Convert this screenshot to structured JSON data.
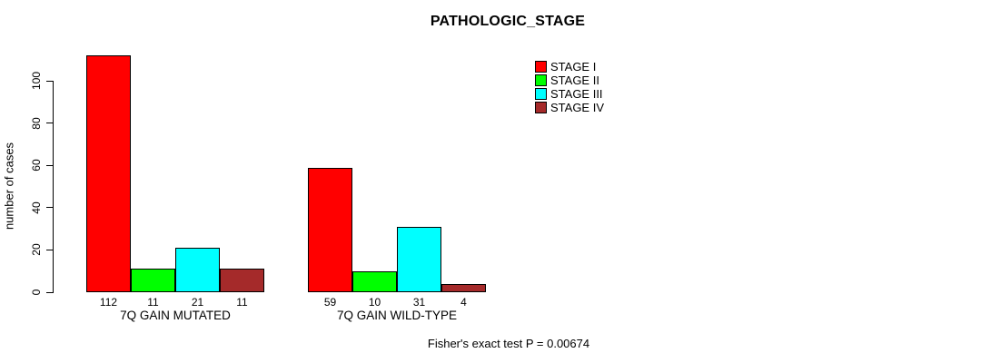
{
  "chart_data": {
    "type": "bar",
    "title": "PATHOLOGIC_STAGE",
    "ylabel": "number of cases",
    "ylim": [
      0,
      100
    ],
    "yticks": [
      0,
      20,
      40,
      60,
      80,
      100
    ],
    "grid": false,
    "legend_position": "top-right",
    "categories": [
      "7Q GAIN MUTATED",
      "7Q GAIN WILD-TYPE"
    ],
    "series": [
      {
        "name": "STAGE I",
        "color": "#ff0000",
        "values": [
          112,
          59
        ]
      },
      {
        "name": "STAGE II",
        "color": "#00ff00",
        "values": [
          11,
          10
        ]
      },
      {
        "name": "STAGE III",
        "color": "#00ffff",
        "values": [
          21,
          31
        ]
      },
      {
        "name": "STAGE IV",
        "color": "#a52a2a",
        "values": [
          11,
          4
        ]
      }
    ],
    "annotation": "Fisher's exact test P = 0.00674"
  }
}
